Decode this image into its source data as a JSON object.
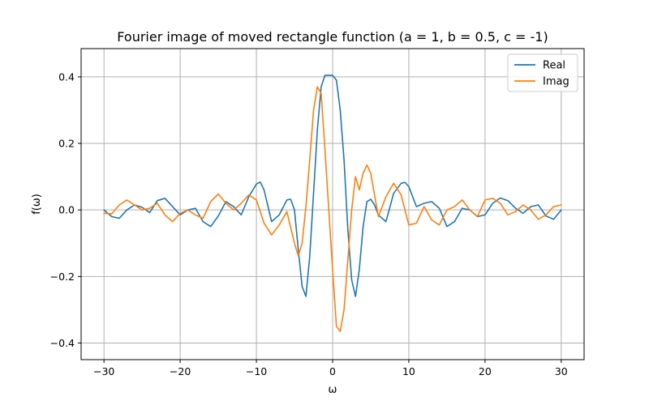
{
  "chart_data": {
    "type": "line",
    "title": "Fourier image of moved rectangle function (a = 1, b = 0.5, c = -1)",
    "xlabel": "ω",
    "ylabel": "f(ω)",
    "xlim": [
      -33,
      33
    ],
    "ylim": [
      -0.45,
      0.485
    ],
    "grid": true,
    "legend_position": "top-right",
    "x_ticks": [
      {
        "value": -30,
        "label": "−30"
      },
      {
        "value": -20,
        "label": "−20"
      },
      {
        "value": -10,
        "label": "−10"
      },
      {
        "value": 0,
        "label": "0"
      },
      {
        "value": 10,
        "label": "10"
      },
      {
        "value": 20,
        "label": "20"
      },
      {
        "value": 30,
        "label": "30"
      }
    ],
    "y_ticks": [
      {
        "value": -0.4,
        "label": "−0.4"
      },
      {
        "value": -0.2,
        "label": "−0.2"
      },
      {
        "value": 0.0,
        "label": "0.0"
      },
      {
        "value": 0.2,
        "label": "0.2"
      },
      {
        "value": 0.4,
        "label": "0.4"
      }
    ],
    "series": [
      {
        "name": "Real",
        "color": "#1f77b4",
        "x": [
          -30,
          -29,
          -28,
          -27,
          -26,
          -25,
          -24,
          -23,
          -22,
          -21,
          -20,
          -19,
          -18,
          -17,
          -16,
          -15,
          -14,
          -13,
          -12,
          -11,
          -10,
          -9.5,
          -9,
          -8,
          -7,
          -6,
          -5.5,
          -5,
          -4.5,
          -4,
          -3.5,
          -3,
          -2.5,
          -2,
          -1.5,
          -1,
          -0.5,
          0,
          0.5,
          1,
          1.5,
          2,
          2.5,
          3,
          3.5,
          4,
          4.5,
          5,
          5.5,
          6,
          7,
          8,
          9,
          9.5,
          10,
          11,
          12,
          13,
          14,
          15,
          16,
          17,
          18,
          19,
          20,
          21,
          22,
          23,
          24,
          25,
          26,
          27,
          28,
          29,
          30
        ],
        "values": [
          0.0,
          -0.02,
          -0.025,
          0.0,
          0.015,
          0.008,
          -0.008,
          0.028,
          0.035,
          0.01,
          -0.015,
          0.0,
          0.005,
          -0.035,
          -0.05,
          -0.018,
          0.025,
          0.01,
          -0.015,
          0.04,
          0.078,
          0.084,
          0.06,
          -0.035,
          -0.015,
          0.03,
          0.032,
          0.0,
          -0.12,
          -0.23,
          -0.26,
          -0.14,
          0.05,
          0.24,
          0.37,
          0.405,
          0.405,
          0.405,
          0.39,
          0.3,
          0.15,
          -0.06,
          -0.21,
          -0.26,
          -0.18,
          -0.05,
          0.025,
          0.032,
          0.015,
          -0.015,
          -0.035,
          0.05,
          0.08,
          0.083,
          0.07,
          0.01,
          0.02,
          0.025,
          0.005,
          -0.05,
          -0.035,
          0.005,
          0.0,
          -0.02,
          -0.015,
          0.02,
          0.036,
          0.028,
          0.005,
          -0.01,
          0.01,
          0.015,
          -0.018,
          -0.028,
          0.0
        ]
      },
      {
        "name": "Imag",
        "color": "#ff7f0e",
        "x": [
          -30,
          -29,
          -28,
          -27,
          -26,
          -25,
          -24,
          -23,
          -22,
          -21,
          -20,
          -19,
          -18,
          -17,
          -16,
          -15,
          -14,
          -13,
          -12,
          -11,
          -10,
          -9,
          -8,
          -7,
          -6,
          -5,
          -4.5,
          -4,
          -3.5,
          -3,
          -2.5,
          -2,
          -1.5,
          -1,
          -0.5,
          0,
          0.5,
          1,
          1.5,
          2,
          2.5,
          3,
          3.5,
          4,
          4.5,
          5,
          6,
          7,
          8,
          9,
          10,
          11,
          12,
          13,
          14,
          15,
          16,
          17,
          18,
          19,
          20,
          21,
          22,
          23,
          24,
          25,
          26,
          27,
          28,
          29,
          30
        ],
        "values": [
          -0.01,
          -0.012,
          0.015,
          0.03,
          0.015,
          0.0,
          0.005,
          0.02,
          -0.015,
          -0.035,
          -0.01,
          0.0,
          -0.015,
          -0.025,
          0.025,
          0.048,
          0.02,
          0.0,
          0.02,
          0.045,
          0.03,
          -0.04,
          -0.075,
          -0.045,
          -0.005,
          -0.1,
          -0.138,
          -0.1,
          0.01,
          0.15,
          0.3,
          0.37,
          0.35,
          0.18,
          0.0,
          -0.18,
          -0.35,
          -0.365,
          -0.3,
          -0.15,
          0.0,
          0.1,
          0.06,
          0.11,
          0.135,
          0.11,
          -0.02,
          0.04,
          0.08,
          0.045,
          -0.045,
          -0.04,
          0.01,
          -0.03,
          -0.045,
          0.0,
          0.01,
          0.03,
          0.0,
          -0.02,
          0.03,
          0.035,
          0.02,
          -0.015,
          -0.005,
          0.015,
          0.0,
          -0.028,
          -0.015,
          0.01,
          0.015
        ]
      }
    ]
  }
}
